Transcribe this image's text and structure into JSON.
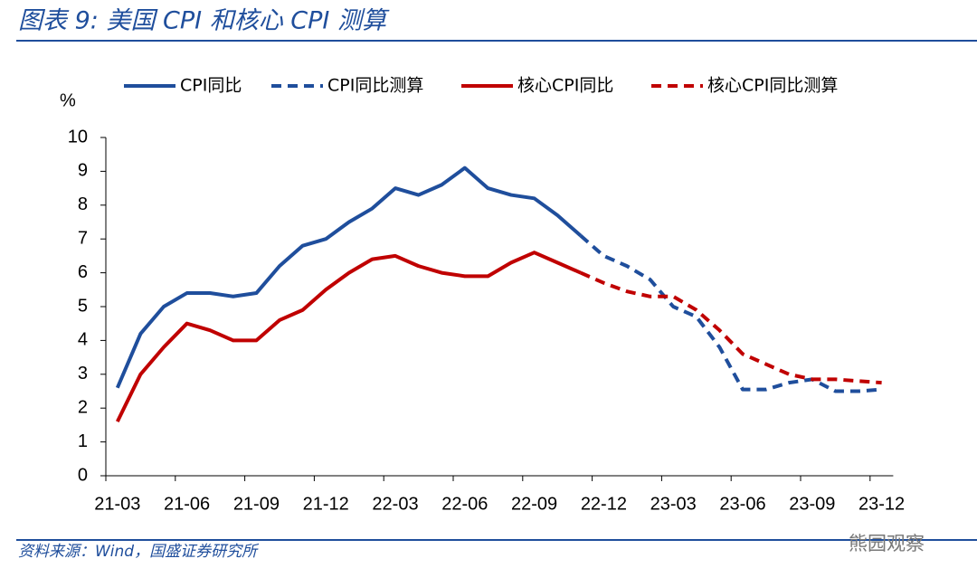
{
  "chart_data": {
    "type": "line",
    "title": "图表 9:  美国 CPI 和核心 CPI 测算",
    "y_label": "%",
    "source": "资料来源：Wind，国盛证券研究所",
    "watermark": "熊园观察",
    "categories": [
      "21-03",
      null,
      null,
      "21-06",
      null,
      null,
      "21-09",
      null,
      null,
      "21-12",
      null,
      null,
      "22-03",
      null,
      null,
      "22-06",
      null,
      null,
      "22-09",
      null,
      null,
      "22-12",
      null,
      null,
      "23-03",
      null,
      null,
      "23-06",
      null,
      null,
      "23-09",
      null,
      null,
      "23-12"
    ],
    "series": [
      {
        "name": "CPI同比",
        "color": "#1f4e9c",
        "style": "solid",
        "values": [
          2.6,
          4.2,
          5.0,
          5.4,
          5.4,
          5.3,
          5.4,
          6.2,
          6.8,
          7.0,
          7.5,
          7.9,
          8.5,
          8.3,
          8.6,
          9.1,
          8.5,
          8.3,
          8.2,
          7.7,
          7.1,
          null,
          null,
          null,
          null,
          null,
          null,
          null,
          null,
          null,
          null,
          null,
          null,
          null
        ]
      },
      {
        "name": "CPI同比测算",
        "color": "#1f4e9c",
        "style": "dashed",
        "values": [
          null,
          null,
          null,
          null,
          null,
          null,
          null,
          null,
          null,
          null,
          null,
          null,
          null,
          null,
          null,
          null,
          null,
          null,
          null,
          null,
          7.1,
          6.5,
          6.2,
          5.8,
          5.0,
          4.7,
          3.8,
          2.55,
          2.55,
          2.75,
          2.85,
          2.5,
          2.5,
          2.55
        ]
      },
      {
        "name": "核心CPI同比",
        "color": "#c00000",
        "style": "solid",
        "values": [
          1.6,
          3.0,
          3.8,
          4.5,
          4.3,
          4.0,
          4.0,
          4.6,
          4.9,
          5.5,
          6.0,
          6.4,
          6.5,
          6.2,
          6.0,
          5.9,
          5.9,
          6.3,
          6.6,
          6.3,
          6.0,
          null,
          null,
          null,
          null,
          null,
          null,
          null,
          null,
          null,
          null,
          null,
          null,
          null
        ]
      },
      {
        "name": "核心CPI同比测算",
        "color": "#c00000",
        "style": "dashed",
        "values": [
          null,
          null,
          null,
          null,
          null,
          null,
          null,
          null,
          null,
          null,
          null,
          null,
          null,
          null,
          null,
          null,
          null,
          null,
          null,
          null,
          6.0,
          5.7,
          5.45,
          5.3,
          5.3,
          4.9,
          4.3,
          3.6,
          3.3,
          3.0,
          2.85,
          2.85,
          2.8,
          2.75
        ]
      }
    ],
    "ylim": [
      0,
      10
    ],
    "yticks": [
      0,
      1,
      2,
      3,
      4,
      5,
      6,
      7,
      8,
      9,
      10
    ],
    "grid": false
  }
}
